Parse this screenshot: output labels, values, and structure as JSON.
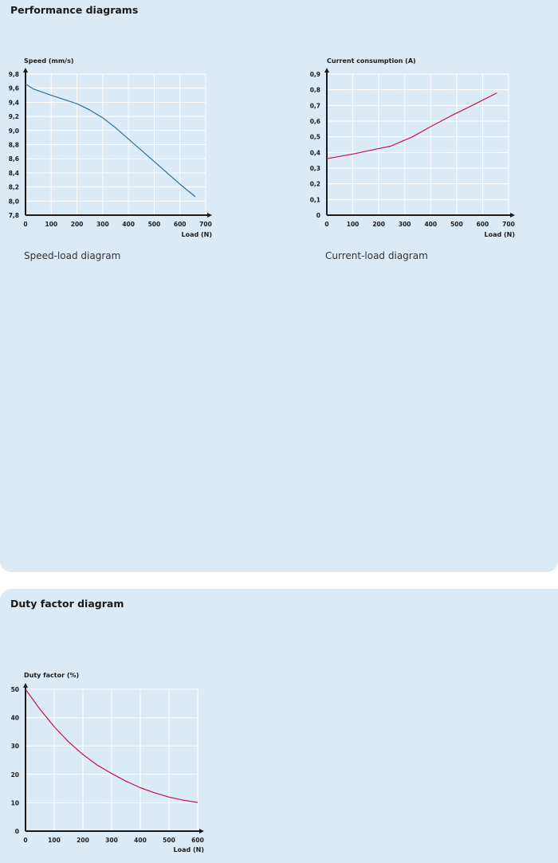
{
  "sections": {
    "performance": {
      "title": "Performance diagrams",
      "speed_caption": "Speed-load diagram",
      "current_caption": "Current-load diagram"
    },
    "duty": {
      "title": "Duty factor diagram"
    }
  },
  "colors": {
    "panel_background": "#dbeaf7",
    "gridline": "#ffffff",
    "axis": "#1a1a1a",
    "speed_line": "#2f6f9a",
    "current_line": "#c4134d",
    "duty_line": "#c4134d"
  },
  "chart_data": [
    {
      "type": "line",
      "ylabel": "Speed (mm/s)",
      "xlabel": "Load (N)",
      "xlim": [
        0,
        700
      ],
      "ylim": [
        7.8,
        9.8
      ],
      "xticks": [
        0,
        100,
        200,
        300,
        400,
        500,
        600,
        700
      ],
      "xtick_labels": [
        "0",
        "100",
        "200",
        "300",
        "400",
        "500",
        "600",
        "700"
      ],
      "yticks": [
        7.8,
        8.0,
        8.2,
        8.4,
        8.6,
        8.8,
        9.0,
        9.2,
        9.4,
        9.6,
        9.8
      ],
      "ytick_labels": [
        "7,8",
        "8,0",
        "8,2",
        "8,4",
        "8,6",
        "8,8",
        "9,0",
        "9,2",
        "9,4",
        "9,6",
        "9,8"
      ],
      "grid": true,
      "series": [
        {
          "x": [
            0,
            30,
            100,
            200,
            250,
            300,
            350,
            400,
            450,
            500,
            550,
            600,
            660
          ],
          "y": [
            9.66,
            9.59,
            9.5,
            9.38,
            9.29,
            9.18,
            9.04,
            8.88,
            8.72,
            8.56,
            8.4,
            8.24,
            8.06
          ],
          "color": "#2f6f9a"
        }
      ]
    },
    {
      "type": "line",
      "ylabel": "Current consumption (A)",
      "xlabel": "Load (N)",
      "xlim": [
        0,
        700
      ],
      "ylim": [
        0,
        0.9
      ],
      "xticks": [
        0,
        100,
        200,
        300,
        400,
        500,
        600,
        700
      ],
      "xtick_labels": [
        "0",
        "100",
        "200",
        "300",
        "400",
        "500",
        "600",
        "700"
      ],
      "yticks": [
        0,
        0.1,
        0.2,
        0.3,
        0.4,
        0.5,
        0.6,
        0.7,
        0.8,
        0.9
      ],
      "ytick_labels": [
        "0",
        "0,1",
        "0,2",
        "0,3",
        "0,4",
        "0,5",
        "0,6",
        "0,7",
        "0,8",
        "0,9"
      ],
      "grid": true,
      "series": [
        {
          "x": [
            0,
            100,
            200,
            245,
            330,
            400,
            480,
            560,
            655
          ],
          "y": [
            0.36,
            0.39,
            0.425,
            0.44,
            0.5,
            0.565,
            0.635,
            0.7,
            0.78
          ],
          "color": "#c4134d"
        }
      ]
    },
    {
      "type": "line",
      "ylabel": "Duty factor (%)",
      "xlabel": "Load (N)",
      "xlim": [
        0,
        600
      ],
      "ylim": [
        0,
        50
      ],
      "xticks": [
        0,
        100,
        200,
        300,
        400,
        500,
        600
      ],
      "xtick_labels": [
        "0",
        "100",
        "200",
        "300",
        "400",
        "500",
        "600"
      ],
      "yticks": [
        0,
        10,
        20,
        30,
        40,
        50
      ],
      "ytick_labels": [
        "0",
        "10",
        "20",
        "30",
        "40",
        "50"
      ],
      "grid": true,
      "series": [
        {
          "x": [
            0,
            50,
            100,
            150,
            200,
            250,
            300,
            350,
            400,
            450,
            500,
            550,
            600
          ],
          "y": [
            50,
            43,
            36.8,
            31.5,
            27,
            23.3,
            20.3,
            17.6,
            15.3,
            13.5,
            12,
            10.9,
            10.1
          ],
          "color": "#c4134d"
        }
      ]
    }
  ]
}
